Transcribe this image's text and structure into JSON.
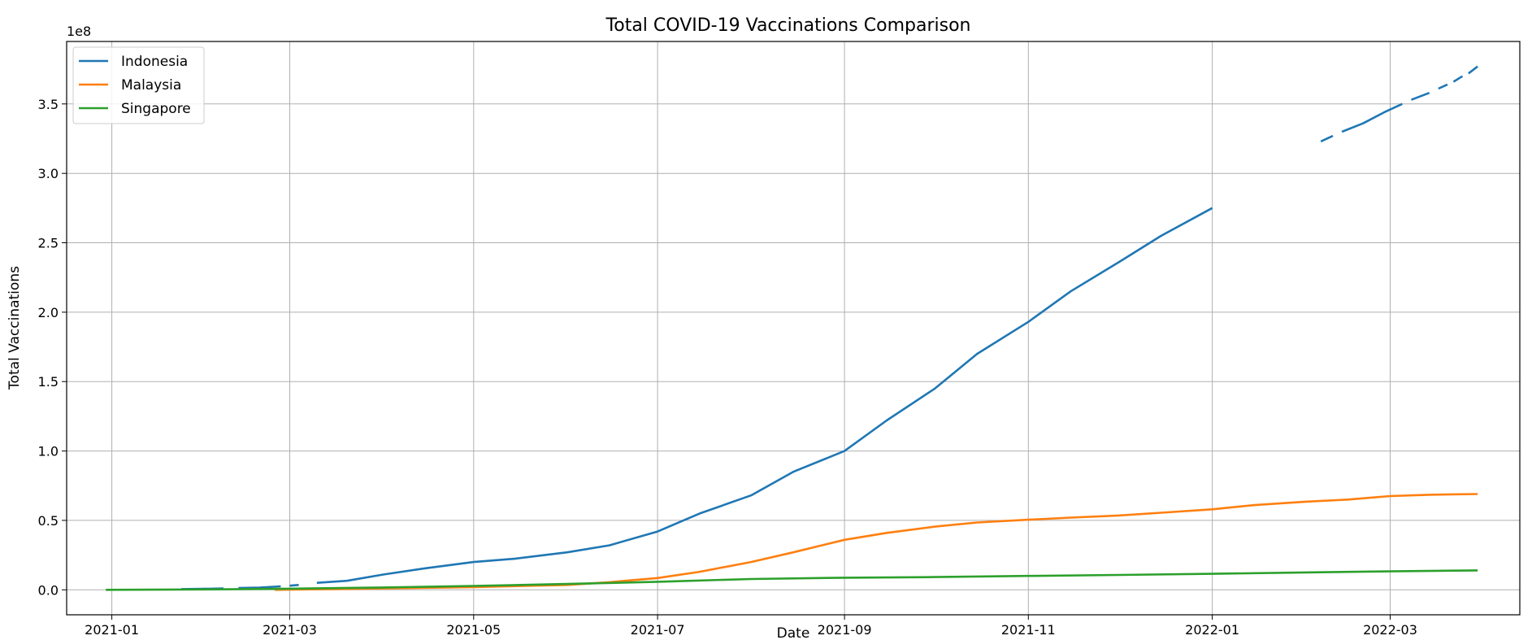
{
  "chart_data": {
    "type": "line",
    "title": "Total COVID-19 Vaccinations Comparison",
    "xlabel": "Date",
    "ylabel": "Total Vaccinations",
    "y_offset_label": "1e8",
    "x_axis_type": "date",
    "xlim": [
      "2020-12-17",
      "2022-04-13"
    ],
    "ylim": [
      -0.18,
      3.95
    ],
    "y_unit": "1e8",
    "x_ticks": [
      "2021-01",
      "2021-03",
      "2021-05",
      "2021-07",
      "2021-09",
      "2021-11",
      "2022-01",
      "2022-03"
    ],
    "x_tick_dates": [
      "2021-01-01",
      "2021-03-01",
      "2021-05-01",
      "2021-07-01",
      "2021-09-01",
      "2021-11-01",
      "2022-01-01",
      "2022-03-01"
    ],
    "y_ticks": [
      "0.0",
      "0.5",
      "1.0",
      "1.5",
      "2.0",
      "2.5",
      "3.0",
      "3.5"
    ],
    "y_tick_values": [
      0.0,
      0.5,
      1.0,
      1.5,
      2.0,
      2.5,
      3.0,
      3.5
    ],
    "grid": true,
    "legend_position": "top-left",
    "series": [
      {
        "name": "Indonesia",
        "color": "#1f77b4",
        "segments": [
          [
            [
              "2021-01-24",
              0.005
            ],
            [
              "2021-01-31",
              0.007
            ],
            [
              "2021-02-07",
              0.01
            ]
          ],
          [
            [
              "2021-02-12",
              0.013
            ],
            [
              "2021-02-19",
              0.016
            ],
            [
              "2021-02-26",
              0.025
            ]
          ],
          [
            [
              "2021-03-01",
              0.03
            ],
            [
              "2021-03-04",
              0.035
            ]
          ],
          [
            [
              "2021-03-10",
              0.05
            ],
            [
              "2021-03-20",
              0.065
            ],
            [
              "2021-04-01",
              0.11
            ],
            [
              "2021-04-15",
              0.155
            ],
            [
              "2021-05-01",
              0.2
            ],
            [
              "2021-05-15",
              0.225
            ],
            [
              "2021-06-01",
              0.27
            ],
            [
              "2021-06-15",
              0.32
            ],
            [
              "2021-07-01",
              0.42
            ],
            [
              "2021-07-15",
              0.55
            ],
            [
              "2021-08-01",
              0.68
            ],
            [
              "2021-08-15",
              0.85
            ],
            [
              "2021-09-01",
              1.0
            ],
            [
              "2021-09-15",
              1.22
            ],
            [
              "2021-10-01",
              1.45
            ],
            [
              "2021-10-15",
              1.7
            ],
            [
              "2021-11-01",
              1.93
            ],
            [
              "2021-11-15",
              2.15
            ],
            [
              "2021-12-01",
              2.36
            ],
            [
              "2021-12-15",
              2.55
            ],
            [
              "2022-01-01",
              2.75
            ]
          ],
          [
            [
              "2022-02-06",
              3.23
            ],
            [
              "2022-02-10",
              3.27
            ]
          ],
          [
            [
              "2022-02-13",
              3.3
            ],
            [
              "2022-02-20",
              3.36
            ],
            [
              "2022-02-27",
              3.44
            ],
            [
              "2022-03-05",
              3.5
            ]
          ],
          [
            [
              "2022-03-08",
              3.53
            ],
            [
              "2022-03-14",
              3.58
            ]
          ],
          [
            [
              "2022-03-17",
              3.61
            ],
            [
              "2022-03-20",
              3.64
            ]
          ],
          [
            [
              "2022-03-22",
              3.66
            ],
            [
              "2022-03-25",
              3.7
            ]
          ],
          [
            [
              "2022-03-27",
              3.72
            ],
            [
              "2022-03-30",
              3.77
            ]
          ]
        ]
      },
      {
        "name": "Malaysia",
        "color": "#ff7f0e",
        "segments": [
          [
            [
              "2021-02-24",
              0.0
            ],
            [
              "2021-03-15",
              0.005
            ],
            [
              "2021-04-01",
              0.01
            ],
            [
              "2021-05-01",
              0.02
            ],
            [
              "2021-06-01",
              0.035
            ],
            [
              "2021-06-15",
              0.055
            ],
            [
              "2021-07-01",
              0.085
            ],
            [
              "2021-07-15",
              0.13
            ],
            [
              "2021-08-01",
              0.2
            ],
            [
              "2021-08-15",
              0.27
            ],
            [
              "2021-09-01",
              0.36
            ],
            [
              "2021-09-15",
              0.41
            ],
            [
              "2021-10-01",
              0.455
            ],
            [
              "2021-10-15",
              0.485
            ],
            [
              "2021-11-01",
              0.505
            ],
            [
              "2021-11-15",
              0.52
            ],
            [
              "2021-12-01",
              0.535
            ],
            [
              "2021-12-15",
              0.555
            ],
            [
              "2022-01-01",
              0.58
            ],
            [
              "2022-01-15",
              0.61
            ],
            [
              "2022-02-01",
              0.635
            ],
            [
              "2022-02-15",
              0.65
            ],
            [
              "2022-03-01",
              0.675
            ],
            [
              "2022-03-15",
              0.685
            ],
            [
              "2022-03-30",
              0.69
            ]
          ]
        ]
      },
      {
        "name": "Singapore",
        "color": "#2ca02c",
        "segments": [
          [
            [
              "2020-12-30",
              0.0
            ],
            [
              "2021-02-01",
              0.003
            ],
            [
              "2021-03-01",
              0.008
            ],
            [
              "2021-04-01",
              0.017
            ],
            [
              "2021-05-01",
              0.028
            ],
            [
              "2021-06-01",
              0.042
            ],
            [
              "2021-07-01",
              0.058
            ],
            [
              "2021-08-01",
              0.078
            ],
            [
              "2021-09-01",
              0.087
            ],
            [
              "2021-10-01",
              0.092
            ],
            [
              "2021-11-01",
              0.1
            ],
            [
              "2021-12-01",
              0.107
            ],
            [
              "2022-01-01",
              0.115
            ],
            [
              "2022-02-01",
              0.125
            ],
            [
              "2022-03-01",
              0.133
            ],
            [
              "2022-03-30",
              0.14
            ]
          ]
        ]
      }
    ]
  }
}
